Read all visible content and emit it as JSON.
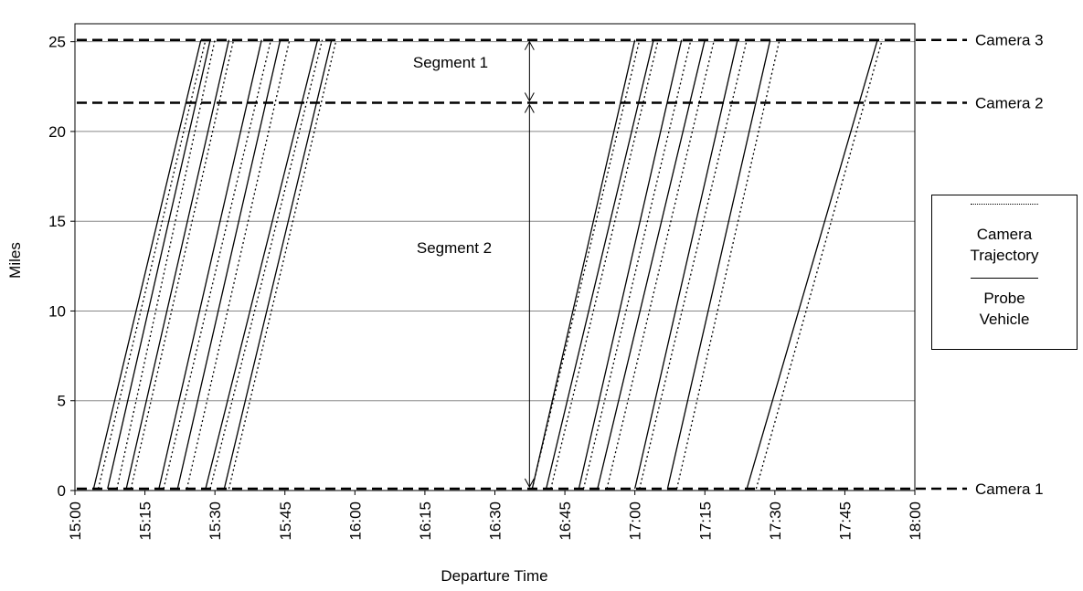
{
  "chart_data": {
    "type": "line",
    "title": "",
    "xlabel": "Departure Time",
    "ylabel": "Miles",
    "x_ticks": [
      "15:00",
      "15:15",
      "15:30",
      "15:45",
      "16:00",
      "16:15",
      "16:30",
      "16:45",
      "17:00",
      "17:15",
      "17:30",
      "17:45",
      "18:00"
    ],
    "y_ticks": [
      "0",
      "5",
      "10",
      "15",
      "20",
      "25"
    ],
    "xlim": [
      "15:00",
      "18:00"
    ],
    "ylim": [
      0,
      26
    ],
    "grid": "horizontal",
    "reference_lines": [
      {
        "label": "Camera 1",
        "miles": 0.1
      },
      {
        "label": "Camera 2",
        "miles": 21.6
      },
      {
        "label": "Camera 3",
        "miles": 25.1
      }
    ],
    "annotations": [
      {
        "label": "Segment 1",
        "time": "16:38",
        "from_miles": 21.6,
        "to_miles": 25.1
      },
      {
        "label": "Segment 2",
        "time": "16:38",
        "from_miles": 0.1,
        "to_miles": 21.6
      }
    ],
    "legend": {
      "placement": "right",
      "entries": [
        {
          "line": "dotted",
          "text": [
            "Camera",
            "Trajectory"
          ]
        },
        {
          "line": "solid",
          "text": [
            "Probe",
            "Vehicle"
          ]
        }
      ]
    },
    "series": [
      {
        "kind": "Probe Vehicle",
        "style": "solid",
        "trajectories": [
          {
            "start": "15:04",
            "end": "15:27"
          },
          {
            "start": "15:07",
            "end": "15:29"
          },
          {
            "start": "15:11",
            "end": "15:33"
          },
          {
            "start": "15:18",
            "end": "15:40"
          },
          {
            "start": "15:22",
            "end": "15:44"
          },
          {
            "start": "15:28",
            "end": "15:52"
          },
          {
            "start": "15:32",
            "end": "15:55"
          },
          {
            "start": "16:38",
            "end": "17:00"
          },
          {
            "start": "16:41",
            "end": "17:04"
          },
          {
            "start": "16:48",
            "end": "17:10"
          },
          {
            "start": "16:52",
            "end": "17:15"
          },
          {
            "start": "17:00",
            "end": "17:22"
          },
          {
            "start": "17:07",
            "end": "17:29"
          },
          {
            "start": "17:24",
            "end": "17:52"
          }
        ]
      },
      {
        "kind": "Camera Trajectory",
        "style": "dotted",
        "trajectories": [
          {
            "start": "15:05",
            "end": "15:28"
          },
          {
            "start": "15:09",
            "end": "15:30"
          },
          {
            "start": "15:12",
            "end": "15:34"
          },
          {
            "start": "15:19",
            "end": "15:42"
          },
          {
            "start": "15:24",
            "end": "15:46"
          },
          {
            "start": "15:29",
            "end": "15:53"
          },
          {
            "start": "15:33",
            "end": "15:56"
          },
          {
            "start": "16:38",
            "end": "17:01"
          },
          {
            "start": "16:42",
            "end": "17:05"
          },
          {
            "start": "16:49",
            "end": "17:12"
          },
          {
            "start": "16:54",
            "end": "17:17"
          },
          {
            "start": "17:01",
            "end": "17:24"
          },
          {
            "start": "17:09",
            "end": "17:31"
          },
          {
            "start": "17:26",
            "end": "17:53"
          }
        ]
      }
    ]
  }
}
